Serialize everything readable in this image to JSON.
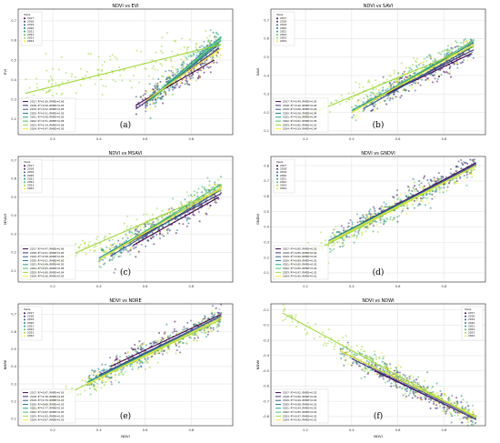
{
  "figure": {
    "years": [
      "2017",
      "2018",
      "2019",
      "2020",
      "2021",
      "2022",
      "2023",
      "2024"
    ],
    "year_colors": [
      "#440154",
      "#46327e",
      "#365c8d",
      "#277f8e",
      "#1fa187",
      "#4ac16d",
      "#a0da39",
      "#fde725"
    ],
    "legend_title": "Years"
  },
  "chart_data": [
    {
      "type": "scatter",
      "panel": "(a)",
      "title": "NDVI vs EVI",
      "xlabel": "",
      "ylabel": "EVI",
      "xlim": [
        0.05,
        0.98
      ],
      "ylim": [
        0.12,
        0.76
      ],
      "xticks": [
        "0.2",
        "0.4",
        "0.6",
        "0.8"
      ],
      "xtick_values": [
        0.2,
        0.4,
        0.6,
        0.8
      ],
      "yticks": [
        "0.2",
        "0.3",
        "0.4",
        "0.5",
        "0.6",
        "0.7"
      ],
      "ytick_values": [
        0.2,
        0.3,
        0.4,
        0.5,
        0.6,
        0.7
      ],
      "legend_placement": "top-left",
      "reg_legend_placement": "bottom-left",
      "series": [
        {
          "name": "2017",
          "fit_label": "2017: R²=0.36, RMSE=0.06",
          "fit_x": [
            0.56,
            0.9
          ],
          "fit_y": [
            0.27,
            0.5
          ]
        },
        {
          "name": "2018",
          "fit_label": "2018: R²=0.56, RMSE=0.05",
          "fit_x": [
            0.56,
            0.92
          ],
          "fit_y": [
            0.25,
            0.56
          ]
        },
        {
          "name": "2019",
          "fit_label": "2019: R²=0.52, RMSE=0.05",
          "fit_x": [
            0.6,
            0.92
          ],
          "fit_y": [
            0.28,
            0.58
          ]
        },
        {
          "name": "2020",
          "fit_label": "2020: R²=0.51, RMSE=0.05",
          "fit_x": [
            0.62,
            0.93
          ],
          "fit_y": [
            0.3,
            0.6
          ]
        },
        {
          "name": "2021",
          "fit_label": "2021: R²=0.56, RMSE=0.05",
          "fit_x": [
            0.62,
            0.93
          ],
          "fit_y": [
            0.3,
            0.62
          ]
        },
        {
          "name": "2022",
          "fit_label": "2022: R²=0.51, RMSE=0.06",
          "fit_x": [
            0.62,
            0.93
          ],
          "fit_y": [
            0.29,
            0.61
          ]
        },
        {
          "name": "2023",
          "fit_label": "2023: R²=0.14, RMSE=0.08",
          "fit_x": [
            0.08,
            0.93
          ],
          "fit_y": [
            0.33,
            0.58
          ]
        },
        {
          "name": "2024",
          "fit_label": "2024: R²=0.47, RMSE=0.05",
          "fit_x": [
            0.6,
            0.93
          ],
          "fit_y": [
            0.29,
            0.56
          ]
        }
      ]
    },
    {
      "type": "scatter",
      "panel": "(b)",
      "title": "NDVI vs SAVI",
      "xlabel": "",
      "ylabel": "SAVI",
      "xlim": [
        0.05,
        0.98
      ],
      "ylim": [
        0.08,
        0.76
      ],
      "xticks": [
        "0.2",
        "0.4",
        "0.6",
        "0.8"
      ],
      "xtick_values": [
        0.2,
        0.4,
        0.6,
        0.8
      ],
      "yticks": [
        "0.1",
        "0.2",
        "0.3",
        "0.4",
        "0.5",
        "0.6",
        "0.7"
      ],
      "ytick_values": [
        0.1,
        0.2,
        0.3,
        0.4,
        0.5,
        0.6,
        0.7
      ],
      "legend_placement": "top-left",
      "reg_legend_placement": "bottom-left",
      "series": [
        {
          "name": "2017",
          "fit_label": "2017: R²=0.49, RMSE=0.05",
          "fit_x": [
            0.55,
            0.92
          ],
          "fit_y": [
            0.3,
            0.52
          ]
        },
        {
          "name": "2018",
          "fit_label": "2018: R²=0.40, RMSE=0.04",
          "fit_x": [
            0.45,
            0.93
          ],
          "fit_y": [
            0.24,
            0.54
          ]
        },
        {
          "name": "2019",
          "fit_label": "2019: R²=0.66, RMSE=0.04",
          "fit_x": [
            0.45,
            0.93
          ],
          "fit_y": [
            0.22,
            0.56
          ]
        },
        {
          "name": "2020",
          "fit_label": "2020: R²=0.56, RMSE=0.04",
          "fit_x": [
            0.4,
            0.93
          ],
          "fit_y": [
            0.2,
            0.58
          ]
        },
        {
          "name": "2021",
          "fit_label": "2021: R²=0.50, RMSE=0.04",
          "fit_x": [
            0.4,
            0.93
          ],
          "fit_y": [
            0.21,
            0.57
          ]
        },
        {
          "name": "2022",
          "fit_label": "2022: R²=0.62, RMSE=0.05",
          "fit_x": [
            0.4,
            0.93
          ],
          "fit_y": [
            0.2,
            0.59
          ]
        },
        {
          "name": "2023",
          "fit_label": "2023: R²=0.85, RMSE=0.03",
          "fit_x": [
            0.1,
            0.93
          ],
          "fit_y": [
            0.13,
            0.56
          ]
        },
        {
          "name": "2024",
          "fit_label": "2024: R²=0.59, RMSE=0.04",
          "fit_x": [
            0.4,
            0.93
          ],
          "fit_y": [
            0.2,
            0.57
          ]
        }
      ]
    },
    {
      "type": "scatter",
      "panel": "(c)",
      "title": "NDVI vs MSAVI",
      "xlabel": "",
      "ylabel": "MSAVI",
      "xlim": [
        0.05,
        0.98
      ],
      "ylim": [
        0.04,
        0.72
      ],
      "xticks": [
        "0.2",
        "0.4",
        "0.6",
        "0.8"
      ],
      "xtick_values": [
        0.2,
        0.4,
        0.6,
        0.8
      ],
      "yticks": [
        "0.1",
        "0.2",
        "0.3",
        "0.4",
        "0.5",
        "0.6",
        "0.7"
      ],
      "ytick_values": [
        0.1,
        0.2,
        0.3,
        0.4,
        0.5,
        0.6,
        0.7
      ],
      "legend_placement": "top-left",
      "reg_legend_placement": "bottom-left",
      "series": [
        {
          "name": "2017",
          "fit_label": "2017: R²=0.47, RMSE=0.06",
          "fit_x": [
            0.55,
            0.92
          ],
          "fit_y": [
            0.24,
            0.5
          ]
        },
        {
          "name": "2018",
          "fit_label": "2018: R²=0.51, RMSE=0.05",
          "fit_x": [
            0.45,
            0.93
          ],
          "fit_y": [
            0.2,
            0.52
          ]
        },
        {
          "name": "2019",
          "fit_label": "2019: R²=0.58, RMSE=0.05",
          "fit_x": [
            0.45,
            0.93
          ],
          "fit_y": [
            0.18,
            0.54
          ]
        },
        {
          "name": "2020",
          "fit_label": "2020: R²=0.51, RMSE=0.05",
          "fit_x": [
            0.4,
            0.93
          ],
          "fit_y": [
            0.16,
            0.55
          ]
        },
        {
          "name": "2021",
          "fit_label": "2021: R²=0.49, RMSE=0.05",
          "fit_x": [
            0.4,
            0.93
          ],
          "fit_y": [
            0.17,
            0.55
          ]
        },
        {
          "name": "2022",
          "fit_label": "2022: R²=0.55, RMSE=0.06",
          "fit_x": [
            0.4,
            0.93
          ],
          "fit_y": [
            0.16,
            0.57
          ]
        },
        {
          "name": "2023",
          "fit_label": "2023: R²=0.80, RMSE=0.04",
          "fit_x": [
            0.1,
            0.93
          ],
          "fit_y": [
            0.09,
            0.54
          ]
        },
        {
          "name": "2024",
          "fit_label": "2024: R²=0.56, RMSE=0.05",
          "fit_x": [
            0.4,
            0.93
          ],
          "fit_y": [
            0.16,
            0.55
          ]
        }
      ]
    },
    {
      "type": "scatter",
      "panel": "(d)",
      "title": "NDVI vs GNDVI",
      "xlabel": "",
      "ylabel": "GNDVI",
      "xlim": [
        0.05,
        0.98
      ],
      "ylim": [
        0.04,
        0.86
      ],
      "xticks": [
        "0.2",
        "0.4",
        "0.6",
        "0.8"
      ],
      "xtick_values": [
        0.2,
        0.4,
        0.6,
        0.8
      ],
      "yticks": [
        "0.1",
        "0.2",
        "0.3",
        "0.4",
        "0.5",
        "0.6",
        "0.7",
        "0.8"
      ],
      "ytick_values": [
        0.1,
        0.2,
        0.3,
        0.4,
        0.5,
        0.6,
        0.7,
        0.8
      ],
      "legend_placement": "top-left",
      "reg_legend_placement": "bottom-left",
      "series": [
        {
          "name": "2017",
          "fit_label": "2017: R²=0.85, RMSE=0.02",
          "fit_x": [
            0.45,
            0.94
          ],
          "fit_y": [
            0.43,
            0.82
          ]
        },
        {
          "name": "2018",
          "fit_label": "2018: R²=0.85, RMSE=0.02",
          "fit_x": [
            0.35,
            0.94
          ],
          "fit_y": [
            0.35,
            0.81
          ]
        },
        {
          "name": "2019",
          "fit_label": "2019: R²=0.90, RMSE=0.02",
          "fit_x": [
            0.3,
            0.94
          ],
          "fit_y": [
            0.31,
            0.81
          ]
        },
        {
          "name": "2020",
          "fit_label": "2020: R²=0.89, RMSE=0.02",
          "fit_x": [
            0.3,
            0.94
          ],
          "fit_y": [
            0.3,
            0.8
          ]
        },
        {
          "name": "2021",
          "fit_label": "2021: R²=0.85, RMSE=0.02",
          "fit_x": [
            0.3,
            0.94
          ],
          "fit_y": [
            0.31,
            0.8
          ]
        },
        {
          "name": "2022",
          "fit_label": "2022: R²=0.85, RMSE=0.02",
          "fit_x": [
            0.3,
            0.94
          ],
          "fit_y": [
            0.3,
            0.8
          ]
        },
        {
          "name": "2023",
          "fit_label": "2023: R²=0.97, RMSE=0.01",
          "fit_x": [
            0.1,
            0.94
          ],
          "fit_y": [
            0.13,
            0.8
          ]
        },
        {
          "name": "2024",
          "fit_label": "2024: R²=0.90, RMSE=0.01",
          "fit_x": [
            0.3,
            0.94
          ],
          "fit_y": [
            0.3,
            0.8
          ]
        }
      ]
    },
    {
      "type": "scatter",
      "panel": "(e)",
      "title": "NDVI vs NDRE",
      "xlabel": "NDVI",
      "ylabel": "NDRE",
      "xlim": [
        0.05,
        0.98
      ],
      "ylim": [
        0.06,
        0.76
      ],
      "xticks": [
        "0.2",
        "0.4",
        "0.6",
        "0.8"
      ],
      "xtick_values": [
        0.2,
        0.4,
        0.6,
        0.8
      ],
      "yticks": [
        "0.1",
        "0.2",
        "0.3",
        "0.4",
        "0.5",
        "0.6",
        "0.7"
      ],
      "ytick_values": [
        0.1,
        0.2,
        0.3,
        0.4,
        0.5,
        0.6,
        0.7
      ],
      "legend_placement": "top-left",
      "reg_legend_placement": "bottom-left",
      "series": [
        {
          "name": "2017",
          "fit_label": "2017: R²=0.87, RMSE=0.03",
          "fit_x": [
            0.45,
            0.93
          ],
          "fit_y": [
            0.4,
            0.7
          ]
        },
        {
          "name": "2018",
          "fit_label": "2018: R²=0.76, RMSE=0.03",
          "fit_x": [
            0.4,
            0.93
          ],
          "fit_y": [
            0.35,
            0.69
          ]
        },
        {
          "name": "2019",
          "fit_label": "2019: R²=0.79, RMSE=0.03",
          "fit_x": [
            0.35,
            0.93
          ],
          "fit_y": [
            0.31,
            0.69
          ]
        },
        {
          "name": "2020",
          "fit_label": "2020: R²=0.66, RMSE=0.03",
          "fit_x": [
            0.35,
            0.93
          ],
          "fit_y": [
            0.31,
            0.68
          ]
        },
        {
          "name": "2021",
          "fit_label": "2021: R²=0.77, RMSE=0.03",
          "fit_x": [
            0.35,
            0.93
          ],
          "fit_y": [
            0.31,
            0.68
          ]
        },
        {
          "name": "2022",
          "fit_label": "2022: R²=0.87, RMSE=0.03",
          "fit_x": [
            0.35,
            0.93
          ],
          "fit_y": [
            0.3,
            0.68
          ]
        },
        {
          "name": "2023",
          "fit_label": "2023: R²=0.93, RMSE=0.02",
          "fit_x": [
            0.1,
            0.93
          ],
          "fit_y": [
            0.14,
            0.67
          ]
        },
        {
          "name": "2024",
          "fit_label": "2024: R²=0.87, RMSE=0.03",
          "fit_x": [
            0.35,
            0.93
          ],
          "fit_y": [
            0.3,
            0.68
          ]
        }
      ]
    },
    {
      "type": "scatter",
      "panel": "(f)",
      "title": "NDVI vs NDWI",
      "xlabel": "NDVI",
      "ylabel": "NDWI",
      "xlim": [
        0.05,
        0.98
      ],
      "ylim": [
        -0.86,
        -0.06
      ],
      "xticks": [
        "0.2",
        "0.4",
        "0.6",
        "0.8"
      ],
      "xtick_values": [
        0.2,
        0.4,
        0.6,
        0.8
      ],
      "yticks": [
        "-0.1",
        "-0.2",
        "-0.3",
        "-0.4",
        "-0.5",
        "-0.6",
        "-0.7",
        "-0.8"
      ],
      "ytick_values": [
        -0.1,
        -0.2,
        -0.3,
        -0.4,
        -0.5,
        -0.6,
        -0.7,
        -0.8
      ],
      "legend_placement": "top-right",
      "reg_legend_placement": "bottom-left",
      "series": [
        {
          "name": "2017",
          "fit_label": "2017: R²=0.91, RMSE=0.02",
          "fit_x": [
            0.5,
            0.94
          ],
          "fit_y": [
            -0.5,
            -0.82
          ]
        },
        {
          "name": "2018",
          "fit_label": "2018: R²=0.86, RMSE=0.02",
          "fit_x": [
            0.4,
            0.94
          ],
          "fit_y": [
            -0.42,
            -0.82
          ]
        },
        {
          "name": "2019",
          "fit_label": "2019: R²=0.90, RMSE=0.02",
          "fit_x": [
            0.35,
            0.94
          ],
          "fit_y": [
            -0.37,
            -0.81
          ]
        },
        {
          "name": "2020",
          "fit_label": "2020: R²=0.88, RMSE=0.02",
          "fit_x": [
            0.35,
            0.94
          ],
          "fit_y": [
            -0.37,
            -0.8
          ]
        },
        {
          "name": "2021",
          "fit_label": "2021: R²=0.94, RMSE=0.02",
          "fit_x": [
            0.35,
            0.94
          ],
          "fit_y": [
            -0.37,
            -0.8
          ]
        },
        {
          "name": "2022",
          "fit_label": "2022: R²=0.85, RMSE=0.02",
          "fit_x": [
            0.35,
            0.94
          ],
          "fit_y": [
            -0.37,
            -0.8
          ]
        },
        {
          "name": "2023",
          "fit_label": "2023: R²=0.97, RMSE=0.02",
          "fit_x": [
            0.1,
            0.94
          ],
          "fit_y": [
            -0.12,
            -0.81
          ]
        },
        {
          "name": "2024",
          "fit_label": "2024: R²=0.90, RMSE=0.01",
          "fit_x": [
            0.35,
            0.94
          ],
          "fit_y": [
            -0.37,
            -0.8
          ]
        }
      ]
    }
  ]
}
